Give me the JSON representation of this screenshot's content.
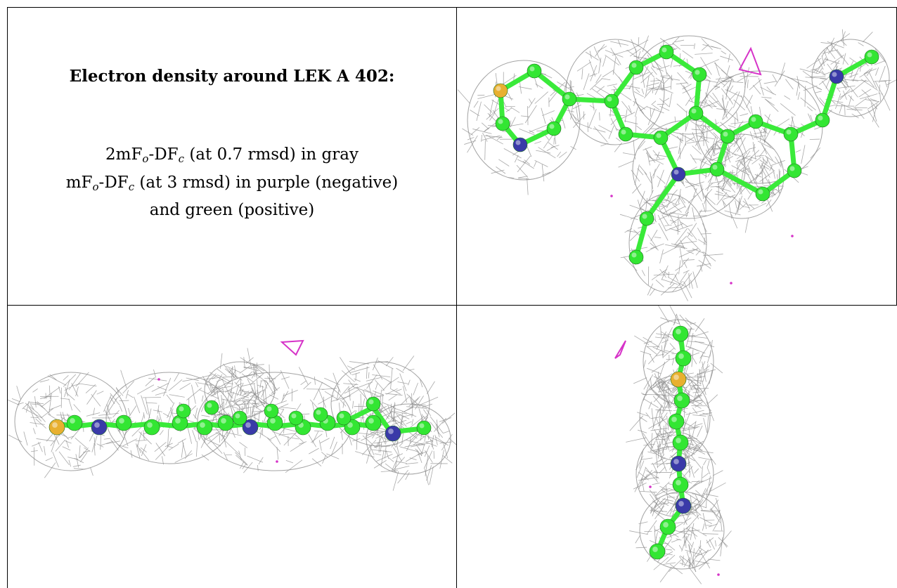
{
  "caption": {
    "title": "Electron density around LEK A 402:",
    "line1": {
      "prefix": "2mF",
      "sub1": "o",
      "mid": "-DF",
      "sub2": "c",
      "suffix": " (at 0.7 rmsd) in gray"
    },
    "line2": {
      "prefix": "mF",
      "sub1": "o",
      "mid": "-DF",
      "sub2": "c",
      "suffix": " (at 3 rmsd) in purple (negative)"
    },
    "line3": "and green (positive)"
  },
  "colors": {
    "mesh": "#8c8c8c",
    "carbon": "#33e633",
    "carbon_bond": "#3aea3a",
    "nitrogen": "#3a3aa8",
    "sulfur": "#e8b030",
    "negative_density": "#d633c8"
  }
}
